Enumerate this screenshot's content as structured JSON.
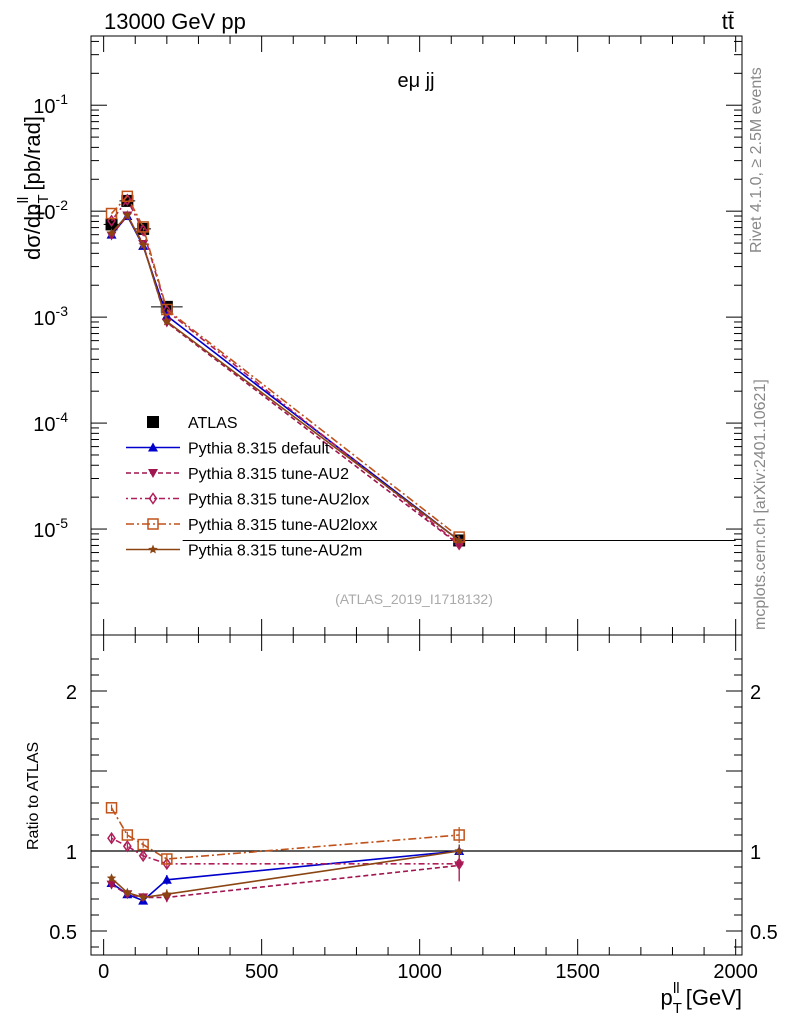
{
  "header": {
    "process": "13000 GeV pp",
    "final_state": "tt̄"
  },
  "side_labels": {
    "rivet": "Rivet 4.1.0, ≥ 2.5M events",
    "source": "mcplots.cern.ch [arXiv:2401.10621]"
  },
  "colors": {
    "ATLAS": "#000000",
    "default": "#0000cc",
    "AU2": "#a0144f",
    "AU2lox": "#b01e5a",
    "AU2loxx": "#c0521a",
    "AU2m": "#8b4513"
  },
  "chart_data": [
    {
      "type": "line",
      "panel": "main",
      "title": "eμ jj",
      "analysis": "(ATLAS_2019_I1718132)",
      "ylabel": "dσ/dp_T^{ll} [pb/rad]",
      "yscale": "log",
      "ylim": [
        1e-06,
        0.45
      ],
      "xlim": [
        -40,
        2020
      ],
      "ytick_labels": [
        "10^-5",
        "10^-4",
        "10^-3",
        "10^-2",
        "10^-1"
      ],
      "x": [
        25,
        75,
        125,
        200,
        1125
      ],
      "xerr": [
        25,
        25,
        25,
        50,
        875
      ],
      "series": [
        {
          "name": "ATLAS",
          "key": "ATLAS",
          "marker": "square",
          "dash": "",
          "values": [
            0.0075,
            0.0125,
            0.0068,
            0.00125,
            7.8e-06
          ]
        },
        {
          "name": "Pythia 8.315 default",
          "key": "default",
          "marker": "triangle-up",
          "dash": "",
          "values": [
            0.006,
            0.009,
            0.0047,
            0.00103,
            7.8e-06
          ]
        },
        {
          "name": "Pythia 8.315 tune-AU2",
          "key": "AU2",
          "marker": "triangle-down",
          "dash": "5,3",
          "values": [
            0.0059,
            0.0091,
            0.0049,
            0.00089,
            7.1e-06
          ]
        },
        {
          "name": "Pythia 8.315 tune-AU2lox",
          "key": "AU2lox",
          "marker": "diamond-open",
          "dash": "2,3,6,3",
          "values": [
            0.0081,
            0.0128,
            0.0066,
            0.00115,
            7.2e-06
          ]
        },
        {
          "name": "Pythia 8.315 tune-AU2loxx",
          "key": "AU2loxx",
          "marker": "square-open",
          "dash": "8,3,2,3",
          "values": [
            0.0095,
            0.0138,
            0.0071,
            0.00118,
            8.4e-06
          ]
        },
        {
          "name": "Pythia 8.315 tune-AU2m",
          "key": "AU2m",
          "marker": "star",
          "dash": "",
          "values": [
            0.0062,
            0.0092,
            0.0048,
            0.00091,
            7.8e-06
          ]
        }
      ]
    },
    {
      "type": "line",
      "panel": "ratio",
      "ylabel": "Ratio to ATLAS",
      "xlabel": "p_T^{ll} [GeV]",
      "ylim": [
        0.35,
        2.35
      ],
      "xlim": [
        -40,
        2020
      ],
      "yticks": [
        0.5,
        1,
        2
      ],
      "ytick_labels": [
        "0.5",
        "1",
        "2"
      ],
      "xticks": [
        0,
        500,
        1000,
        1500,
        2000
      ],
      "xtick_labels": [
        "0",
        "500",
        "1000",
        "1500",
        "2000"
      ],
      "x": [
        25,
        75,
        125,
        200,
        1125
      ],
      "series": [
        {
          "name": "Pythia 8.315 default",
          "key": "default",
          "values": [
            0.8,
            0.73,
            0.69,
            0.82,
            1.0
          ],
          "errors": [
            0.02,
            0.02,
            0.02,
            0.03,
            0.04
          ]
        },
        {
          "name": "Pythia 8.315 tune-AU2",
          "key": "AU2",
          "values": [
            0.79,
            0.73,
            0.71,
            0.71,
            0.91
          ],
          "errors": [
            0.02,
            0.02,
            0.02,
            0.03,
            0.1
          ]
        },
        {
          "name": "Pythia 8.315 tune-AU2lox",
          "key": "AU2lox",
          "values": [
            1.08,
            1.03,
            0.97,
            0.92,
            0.92
          ],
          "errors": [
            0.03,
            0.02,
            0.02,
            0.03,
            0.1
          ]
        },
        {
          "name": "Pythia 8.315 tune-AU2loxx",
          "key": "AU2loxx",
          "values": [
            1.27,
            1.1,
            1.04,
            0.95,
            1.1
          ],
          "errors": [
            0.02,
            0.02,
            0.02,
            0.03,
            0.05
          ]
        },
        {
          "name": "Pythia 8.315 tune-AU2m",
          "key": "AU2m",
          "values": [
            0.83,
            0.74,
            0.71,
            0.73,
            1.0
          ],
          "errors": [
            0.02,
            0.02,
            0.02,
            0.03,
            0.04
          ]
        }
      ]
    }
  ]
}
